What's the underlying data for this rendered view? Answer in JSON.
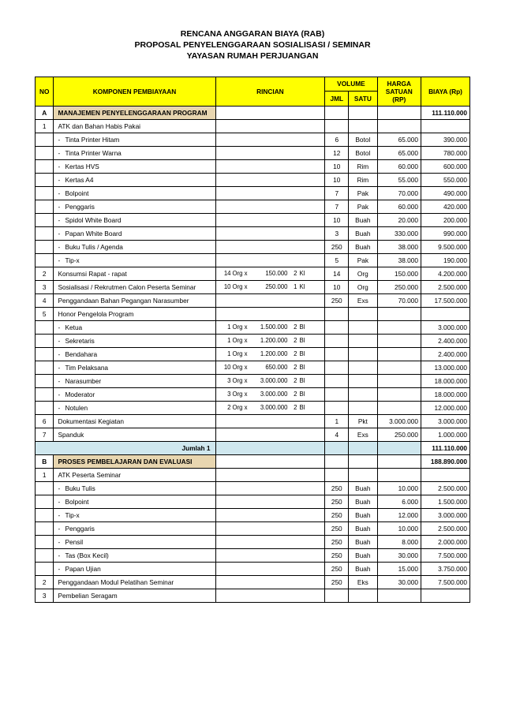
{
  "title": {
    "l1": "RENCANA ANGGARAN BIAYA (RAB)",
    "l2": "PROPOSAL PENYELENGGARAAN SOSIALISASI / SEMINAR",
    "l3": "YAYASAN RUMAH PERJUANGAN"
  },
  "headers": {
    "no": "NO",
    "komponen": "KOMPONEN PEMBIAYAAN",
    "rincian": "RINCIAN",
    "volume": "VOLUME",
    "jml": "JML",
    "satu": "SATU",
    "harga": "HARGA SATUAN (RP)",
    "biaya": "BIAYA (Rp)"
  },
  "rows": [
    {
      "type": "section",
      "no": "A",
      "label": "MANAJEMEN PENYELENGGARAAN PROGRAM",
      "biaya": "111.110.000"
    },
    {
      "type": "item",
      "no": "1",
      "label": "ATK dan Bahan Habis Pakai"
    },
    {
      "type": "sub",
      "label": "Tinta Printer Hitam",
      "jml": "6",
      "satu": "Botol",
      "harga": "65.000",
      "biaya": "390.000"
    },
    {
      "type": "sub",
      "label": "Tinta Printer Warna",
      "jml": "12",
      "satu": "Botol",
      "harga": "65.000",
      "biaya": "780.000"
    },
    {
      "type": "sub",
      "label": "Kertas HVS",
      "jml": "10",
      "satu": "Rim",
      "harga": "60.000",
      "biaya": "600.000"
    },
    {
      "type": "sub",
      "label": "Kertas A4",
      "jml": "10",
      "satu": "Rim",
      "harga": "55.000",
      "biaya": "550.000"
    },
    {
      "type": "sub",
      "label": "Bolpoint",
      "jml": "7",
      "satu": "Pak",
      "harga": "70.000",
      "biaya": "490.000"
    },
    {
      "type": "sub",
      "label": "Penggaris",
      "jml": "7",
      "satu": "Pak",
      "harga": "60.000",
      "biaya": "420.000"
    },
    {
      "type": "sub",
      "label": "Spidol White Board",
      "jml": "10",
      "satu": "Buah",
      "harga": "20.000",
      "biaya": "200.000"
    },
    {
      "type": "sub",
      "label": "Papan White Board",
      "jml": "3",
      "satu": "Buah",
      "harga": "330.000",
      "biaya": "990.000"
    },
    {
      "type": "sub",
      "label": "Buku Tulis / Agenda",
      "jml": "250",
      "satu": "Buah",
      "harga": "38.000",
      "biaya": "9.500.000"
    },
    {
      "type": "sub",
      "label": "Tip-x",
      "jml": "5",
      "satu": "Pak",
      "harga": "38.000",
      "biaya": "190.000"
    },
    {
      "type": "item",
      "no": "2",
      "label": "Konsumsi Rapat - rapat",
      "rinc": [
        "14",
        "Org x",
        "150.000",
        "2",
        "Kl"
      ],
      "jml": "14",
      "satu": "Org",
      "harga": "150.000",
      "biaya": "4.200.000"
    },
    {
      "type": "item",
      "no": "3",
      "label": "Sosialisasi / Rekrutmen Calon Peserta Seminar",
      "rinc": [
        "10",
        "Org x",
        "250.000",
        "1",
        "Kl"
      ],
      "jml": "10",
      "satu": "Org",
      "harga": "250.000",
      "biaya": "2.500.000"
    },
    {
      "type": "item",
      "no": "4",
      "label": "Penggandaan Bahan Pegangan Narasumber",
      "jml": "250",
      "satu": "Exs",
      "harga": "70.000",
      "biaya": "17.500.000"
    },
    {
      "type": "item",
      "no": "5",
      "label": "Honor Pengelola Program"
    },
    {
      "type": "sub",
      "label": "Ketua",
      "rinc": [
        "1",
        "Org x",
        "1.500.000",
        "2",
        "Bl"
      ],
      "biaya": "3.000.000"
    },
    {
      "type": "sub",
      "label": "Sekretaris",
      "rinc": [
        "1",
        "Org x",
        "1.200.000",
        "2",
        "Bl"
      ],
      "biaya": "2.400.000"
    },
    {
      "type": "sub",
      "label": "Bendahara",
      "rinc": [
        "1",
        "Org x",
        "1.200.000",
        "2",
        "Bl"
      ],
      "biaya": "2.400.000"
    },
    {
      "type": "sub",
      "label": "Tim Pelaksana",
      "rinc": [
        "10",
        "Org x",
        "650.000",
        "2",
        "Bl"
      ],
      "biaya": "13.000.000"
    },
    {
      "type": "sub",
      "label": "Narasumber",
      "rinc": [
        "3",
        "Org x",
        "3.000.000",
        "2",
        "Bl"
      ],
      "biaya": "18.000.000"
    },
    {
      "type": "sub",
      "label": "Moderator",
      "rinc": [
        "3",
        "Org x",
        "3.000.000",
        "2",
        "Bl"
      ],
      "biaya": "18.000.000"
    },
    {
      "type": "sub",
      "label": "Notulen",
      "rinc": [
        "2",
        "Org x",
        "3.000.000",
        "2",
        "Bl"
      ],
      "biaya": "12.000.000"
    },
    {
      "type": "item",
      "no": "6",
      "label": "Dokumentasi Kegiatan",
      "jml": "1",
      "satu": "Pkt",
      "harga": "3.000.000",
      "biaya": "3.000.000"
    },
    {
      "type": "item",
      "no": "7",
      "label": "Spanduk",
      "jml": "4",
      "satu": "Exs",
      "harga": "250.000",
      "biaya": "1.000.000"
    },
    {
      "type": "jumlah",
      "label": "Jumlah 1",
      "biaya": "111.110.000"
    },
    {
      "type": "section",
      "no": "B",
      "label": "PROSES PEMBELAJARAN DAN EVALUASI",
      "biaya": "188.890.000"
    },
    {
      "type": "item",
      "no": "1",
      "label": "ATK  Peserta Seminar"
    },
    {
      "type": "sub",
      "label": "Buku Tulis",
      "jml": "250",
      "satu": "Buah",
      "harga": "10.000",
      "biaya": "2.500.000"
    },
    {
      "type": "sub",
      "label": "Bolpoint",
      "jml": "250",
      "satu": "Buah",
      "harga": "6.000",
      "biaya": "1.500.000"
    },
    {
      "type": "sub",
      "label": "Tip-x",
      "jml": "250",
      "satu": "Buah",
      "harga": "12.000",
      "biaya": "3.000.000"
    },
    {
      "type": "sub",
      "label": "Penggaris",
      "jml": "250",
      "satu": "Buah",
      "harga": "10.000",
      "biaya": "2.500.000"
    },
    {
      "type": "sub",
      "label": "Pensil",
      "jml": "250",
      "satu": "Buah",
      "harga": "8.000",
      "biaya": "2.000.000"
    },
    {
      "type": "sub",
      "label": "Tas (Box Kecil)",
      "jml": "250",
      "satu": "Buah",
      "harga": "30.000",
      "biaya": "7.500.000"
    },
    {
      "type": "sub",
      "label": "Papan Ujian",
      "jml": "250",
      "satu": "Buah",
      "harga": "15.000",
      "biaya": "3.750.000"
    },
    {
      "type": "item",
      "no": "2",
      "label": "Penggandaan Modul Pelatihan Seminar",
      "jml": "250",
      "satu": "Eks",
      "harga": "30.000",
      "biaya": "7.500.000"
    },
    {
      "type": "item",
      "no": "3",
      "label": "Pembelian Seragam"
    }
  ]
}
